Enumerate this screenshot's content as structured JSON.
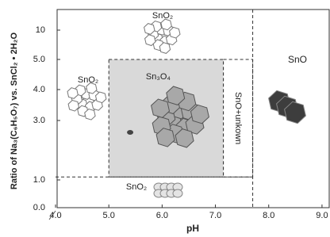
{
  "chart_data": {
    "type": "phase-diagram",
    "xlabel": "pH",
    "ylabel": "Ratio of Na₃(C₆H₅O₇) vs. SnCl₂ • 2H₂O",
    "xlim": [
      4.0,
      9.15
    ],
    "ylim": [
      0.0,
      13.5
    ],
    "xticks": [
      {
        "value": 4,
        "label": "4.0"
      },
      {
        "value": 5,
        "label": "5.0"
      },
      {
        "value": 6,
        "label": "6.0"
      },
      {
        "value": 7,
        "label": "7.0"
      },
      {
        "value": 8,
        "label": "8.0"
      },
      {
        "value": 9,
        "label": "9.0"
      }
    ],
    "yticks": [
      {
        "value": 0,
        "label": "0.0"
      },
      {
        "value": 1,
        "label": "1.0"
      },
      {
        "value": 3,
        "label": "3.0"
      },
      {
        "value": 4,
        "label": "4.0"
      },
      {
        "value": 5,
        "label": "5.0"
      },
      10
    ],
    "regions": [
      {
        "label": "Sn₃O₄",
        "x": [
          5.0,
          7.15
        ],
        "y": [
          1.1,
          5.0
        ],
        "color": "#d9d9d9"
      },
      {
        "label": "SnO+unkown",
        "x": [
          7.15,
          7.7
        ],
        "y": [
          1.1,
          5.0
        ],
        "color": "#ffffff"
      }
    ],
    "boundaries": {
      "horizontal": {
        "y": 1.1,
        "x": [
          4.0,
          7.7
        ]
      },
      "vertical": {
        "x": 7.7
      }
    },
    "phase_labels": [
      "SnO₂",
      "SnO₂",
      "SnO₂",
      "SnO"
    ],
    "point": {
      "x": 5.4,
      "y": 2.6,
      "color": "#444444"
    }
  }
}
